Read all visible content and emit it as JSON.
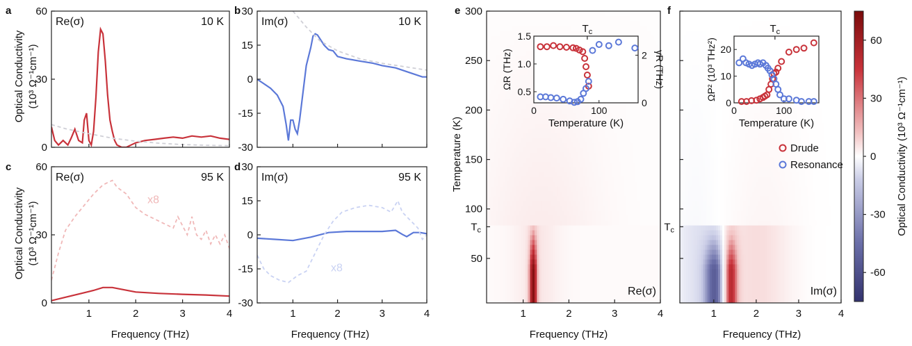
{
  "figure": {
    "colorbar": {
      "label": "Optical Conductivity (10³ Ω⁻¹cm⁻¹)",
      "ticks": [
        "60",
        "30",
        "0",
        "-30",
        "-60"
      ],
      "tick_values": [
        60,
        30,
        0,
        -30,
        -60
      ],
      "range": [
        -75,
        75
      ],
      "colors": {
        "negative": "#33336e",
        "zero": "#ffffff",
        "positive": "#7a0b0b"
      }
    },
    "colors": {
      "red": "#c8323a",
      "blue": "#5b78d8",
      "ghost": "#cfcfd6",
      "light_red": "#f0b8b8",
      "light_blue": "#c9d2f3"
    }
  },
  "chart_data": [
    {
      "panel": "a",
      "type": "line",
      "ylabel_line1": "Optical Conductivity",
      "ylabel_line2": "(10³ Ω⁻¹cm⁻¹)",
      "annotation_left": "Re(σ)",
      "annotation_right": "10 K",
      "xlim": [
        0.2,
        4
      ],
      "ylim": [
        0,
        60
      ],
      "yticks": [
        "0",
        "30",
        "60"
      ],
      "xticks": [],
      "series": [
        {
          "style": "solid",
          "color": "#c8323a",
          "x": [
            0.2,
            0.27,
            0.35,
            0.45,
            0.55,
            0.62,
            0.7,
            0.78,
            0.86,
            0.9,
            0.95,
            1.0,
            1.05,
            1.1,
            1.15,
            1.2,
            1.25,
            1.3,
            1.35,
            1.4,
            1.45,
            1.5,
            1.55,
            1.6,
            1.7,
            1.8,
            1.9,
            2.0,
            2.2,
            2.4,
            2.6,
            2.8,
            3.0,
            3.2,
            3.4,
            3.6,
            3.8,
            4.0
          ],
          "y": [
            9,
            3,
            1,
            3,
            1,
            4,
            8,
            3,
            2,
            12,
            15,
            3,
            1,
            7,
            22,
            42,
            52,
            50,
            38,
            23,
            12,
            7,
            3,
            1,
            0,
            0,
            1,
            2,
            3,
            3.5,
            4,
            4.5,
            4,
            5,
            4.5,
            5,
            4,
            3.5
          ]
        },
        {
          "style": "dashed",
          "color": "#cfcfd6",
          "x": [
            0.2,
            0.5,
            1.0,
            1.5,
            2.0,
            2.5,
            3.0,
            3.5,
            4.0
          ],
          "y": [
            10,
            8.2,
            6,
            4,
            2.7,
            1.8,
            1.2,
            0.9,
            0.7
          ]
        }
      ]
    },
    {
      "panel": "b",
      "type": "line",
      "annotation_left": "Im(σ)",
      "annotation_right": "10 K",
      "xlim": [
        0.2,
        4
      ],
      "ylim": [
        -30,
        30
      ],
      "yticks": [
        "-30",
        "-15",
        "0",
        "15",
        "30"
      ],
      "xticks": [],
      "series": [
        {
          "style": "solid",
          "color": "#5b78d8",
          "x": [
            0.2,
            0.35,
            0.5,
            0.65,
            0.78,
            0.85,
            0.9,
            0.95,
            1.0,
            1.05,
            1.1,
            1.15,
            1.2,
            1.3,
            1.4,
            1.45,
            1.5,
            1.55,
            1.6,
            1.7,
            1.8,
            1.9,
            2.0,
            2.2,
            2.5,
            2.8,
            3.0,
            3.3,
            3.6,
            3.9,
            4.0
          ],
          "y": [
            0,
            -2,
            -4,
            -7,
            -12,
            -20,
            -27,
            -18,
            -18,
            -22,
            -24,
            -18,
            -10,
            6,
            14,
            19,
            20,
            19.5,
            18,
            15,
            13,
            12.5,
            10,
            9,
            8,
            7,
            6,
            5,
            3,
            1,
            1
          ]
        },
        {
          "style": "dashed",
          "color": "#cfcfd6",
          "x": [
            1.0,
            1.3,
            1.6,
            2.0,
            2.5,
            3.0,
            3.5,
            4.0
          ],
          "y": [
            30,
            23,
            17,
            12.5,
            9,
            7,
            5.5,
            4
          ]
        }
      ]
    },
    {
      "panel": "c",
      "type": "line",
      "ylabel_line1": "Optical Conductivity",
      "ylabel_line2": "(10³ Ω⁻¹cm⁻¹)",
      "annotation_left": "Re(σ)",
      "annotation_right": "95 K",
      "scale_label": "x8",
      "xlim": [
        0.2,
        4
      ],
      "ylim": [
        0,
        60
      ],
      "yticks": [
        "0",
        "30",
        "60"
      ],
      "xticks": [
        "1",
        "2",
        "3",
        "4"
      ],
      "xlabel": "Frequency (THz)",
      "series": [
        {
          "style": "solid",
          "color": "#c8323a",
          "x": [
            0.2,
            0.5,
            0.8,
            1.1,
            1.3,
            1.5,
            1.7,
            2.0,
            2.5,
            3.0,
            3.5,
            4.0
          ],
          "y": [
            1,
            2.5,
            4,
            5.5,
            6.8,
            6.8,
            6,
            4.8,
            4.2,
            3.8,
            3.5,
            3
          ]
        },
        {
          "style": "dashed",
          "color": "#f0b8b8",
          "x": [
            0.2,
            0.35,
            0.5,
            0.7,
            0.9,
            1.1,
            1.3,
            1.5,
            1.6,
            1.8,
            2.0,
            2.2,
            2.4,
            2.6,
            2.8,
            2.9,
            3.0,
            3.1,
            3.2,
            3.3,
            3.4,
            3.5,
            3.6,
            3.7,
            3.8,
            3.9,
            4.0
          ],
          "y": [
            10,
            22,
            32,
            38,
            43,
            48,
            52,
            54,
            51,
            48,
            42,
            39,
            37,
            35,
            33,
            38,
            34,
            30,
            38,
            30,
            28,
            32,
            26,
            30,
            26,
            30,
            24
          ]
        }
      ]
    },
    {
      "panel": "d",
      "type": "line",
      "annotation_left": "Im(σ)",
      "annotation_right": "95 K",
      "scale_label": "x8",
      "xlim": [
        0.2,
        4
      ],
      "ylim": [
        -30,
        30
      ],
      "yticks": [
        "-30",
        "-15",
        "0",
        "15",
        "30"
      ],
      "xticks": [
        "1",
        "2",
        "3",
        "4"
      ],
      "xlabel": "Frequency (THz)",
      "series": [
        {
          "style": "solid",
          "color": "#5b78d8",
          "x": [
            0.2,
            0.6,
            1.0,
            1.4,
            1.8,
            2.2,
            2.6,
            3.0,
            3.3,
            3.45,
            3.55,
            3.7,
            3.85,
            4.0
          ],
          "y": [
            -1.5,
            -2,
            -2.5,
            -1,
            1,
            1.5,
            1.5,
            1.5,
            2,
            0.2,
            -0.8,
            1,
            1,
            0.5
          ]
        },
        {
          "style": "dashed",
          "color": "#c9d2f3",
          "x": [
            0.2,
            0.35,
            0.5,
            0.7,
            0.9,
            1.1,
            1.3,
            1.5,
            1.7,
            1.9,
            2.1,
            2.4,
            2.7,
            3.0,
            3.2,
            3.35,
            3.45,
            3.55,
            3.65,
            3.8,
            3.9,
            4.0
          ],
          "y": [
            -9,
            -15,
            -18,
            -20,
            -21,
            -18,
            -16,
            -8,
            0,
            6,
            10,
            12,
            13,
            12,
            10,
            15,
            10,
            8,
            6,
            3,
            -2,
            0
          ]
        }
      ]
    },
    {
      "panel": "e",
      "type": "heatmap",
      "ylabel": "Temperature (K)",
      "xlabel": "Frequency (THz)",
      "annotation": "Re(σ)",
      "xlim": [
        0.2,
        4
      ],
      "ylim": [
        5,
        300
      ],
      "yticks": [
        "50",
        "100",
        "150",
        "200",
        "250",
        "300"
      ],
      "ytick_values": [
        50,
        100,
        150,
        200,
        250,
        300
      ],
      "xticks": [
        "1",
        "2",
        "3",
        "4"
      ],
      "tc_label": "Tc",
      "tc_value": 82,
      "inset": {
        "title": "Tc",
        "xlabel": "Temperature (K)",
        "ylabel_left": "ΩR (THz)",
        "ylabel_right": "γR (THz)",
        "xlim": [
          0,
          160
        ],
        "ylim_left": [
          0.3,
          1.5
        ],
        "ylim_right": [
          0,
          2.8
        ],
        "xticks": [
          "0",
          "100"
        ],
        "yticks_left": [
          "0.5",
          "1.0",
          "1.5"
        ],
        "yticks_right": [
          "0",
          "2"
        ],
        "series": [
          {
            "name": "ΩR",
            "color": "#c8323a",
            "x": [
              10,
              20,
              30,
              40,
              50,
              60,
              65,
              70,
              75,
              78,
              80,
              82,
              84
            ],
            "y": [
              1.31,
              1.31,
              1.33,
              1.31,
              1.3,
              1.29,
              1.28,
              1.25,
              1.22,
              1.1,
              0.95,
              0.8,
              0.6
            ]
          },
          {
            "name": "γR",
            "color": "#5b78d8",
            "x": [
              10,
              18,
              26,
              35,
              45,
              55,
              62,
              67,
              72,
              76,
              80,
              84,
              90,
              100,
              115,
              130,
              155
            ],
            "y": [
              0.25,
              0.25,
              0.22,
              0.2,
              0.15,
              0.08,
              0.02,
              0.05,
              0.15,
              0.4,
              0.6,
              0.9,
              2.2,
              2.45,
              2.4,
              2.55,
              2.3
            ]
          }
        ]
      }
    },
    {
      "panel": "f",
      "type": "heatmap",
      "xlabel": "Frequency (THz)",
      "annotation": "Im(σ)",
      "xlim": [
        0.2,
        4
      ],
      "ylim": [
        5,
        300
      ],
      "tc_label": "Tc",
      "tc_value": 82,
      "xticks": [
        "1",
        "2",
        "3",
        "4"
      ],
      "legend": [
        {
          "label": "Drude",
          "color": "#c8323a"
        },
        {
          "label": "Resonance",
          "color": "#5b78d8"
        }
      ],
      "inset": {
        "title": "Tc",
        "xlabel": "Temperature (K)",
        "ylabel": "ΩP² (10³ THz²)",
        "xlim": [
          0,
          170
        ],
        "ylim": [
          0,
          25
        ],
        "xticks": [
          "0",
          "100"
        ],
        "yticks": [
          "0",
          "10",
          "20"
        ],
        "series": [
          {
            "name": "Drude",
            "color": "#c8323a",
            "x": [
              15,
              25,
              35,
              45,
              52,
              58,
              62,
              66,
              70,
              74,
              77,
              80,
              84,
              88,
              95,
              110,
              125,
              140,
              160
            ],
            "y": [
              0.5,
              0.5,
              0.8,
              1,
              1.5,
              2,
              2.5,
              3,
              5,
              7,
              9,
              11,
              11.5,
              13,
              15.5,
              19,
              20,
              20.5,
              22.5
            ]
          },
          {
            "name": "Resonance",
            "color": "#5b78d8",
            "x": [
              10,
              18,
              24,
              30,
              36,
              42,
              48,
              52,
              58,
              64,
              68,
              72,
              76,
              80,
              84,
              88,
              92,
              100,
              110,
              125,
              135,
              150,
              160
            ],
            "y": [
              15,
              16.5,
              15,
              14.5,
              14,
              14.5,
              15,
              14.5,
              15,
              14,
              13,
              12,
              10.5,
              9,
              7,
              5,
              3,
              1.5,
              1.5,
              1,
              0.5,
              0.5,
              0.5
            ]
          }
        ]
      }
    }
  ]
}
